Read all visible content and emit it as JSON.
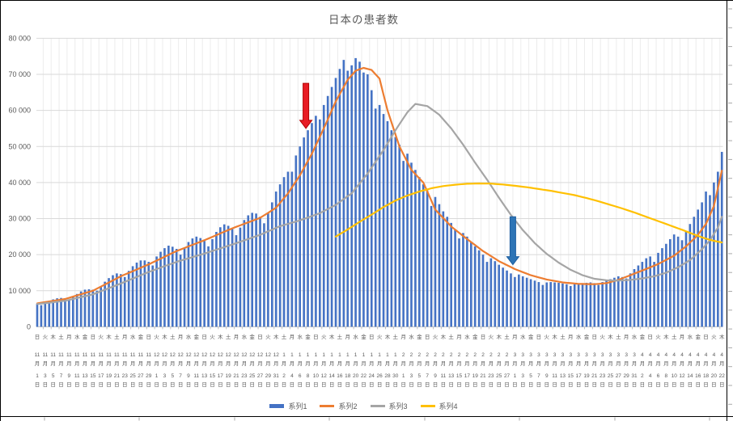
{
  "chart": {
    "title": "日本の患者数",
    "y_axis": {
      "min": 0,
      "max": 80000,
      "step": 10000,
      "tick_labels": [
        "0",
        "10 000",
        "20 000",
        "30 000",
        "40 000",
        "50 000",
        "60 000",
        "70 000",
        "80 000"
      ]
    },
    "legend": [
      {
        "label": "系列1",
        "color": "#4472C4",
        "marker": "bar"
      },
      {
        "label": "系列2",
        "color": "#ED7D31",
        "marker": "line"
      },
      {
        "label": "系列3",
        "color": "#A5A5A5",
        "marker": "line"
      },
      {
        "label": "系列4",
        "color": "#FFC000",
        "marker": "line"
      }
    ],
    "colors": {
      "bar": "#4472C4",
      "gridline": "#D9D9D9",
      "vertical_gridline": "#ECECEC",
      "axis_line": "#BFBFBF",
      "axis_text": "#595959",
      "frame": "#000000"
    },
    "annotations": [
      {
        "name": "red-arrow",
        "fill": "#e81c24",
        "stroke": "#b00000",
        "day_index": 67.5,
        "value_from": 67500,
        "value_to": 55000
      },
      {
        "name": "blue-arrow",
        "fill": "#2e75b6",
        "stroke": "#1f5fa0",
        "day_index": 119.5,
        "value_from": 30500,
        "value_to": 17200
      }
    ]
  },
  "chart_data": {
    "type": "bar",
    "x_start_date": "2020-11-01",
    "x_end_date": "2021-04-22",
    "x_label_every_days": 2,
    "x_labels": [
      [
        "日",
        11,
        1
      ],
      [
        "火",
        11,
        3
      ],
      [
        "木",
        11,
        5
      ],
      [
        "土",
        11,
        7
      ],
      [
        "月",
        11,
        9
      ],
      [
        "水",
        11,
        11
      ],
      [
        "金",
        11,
        13
      ],
      [
        "日",
        11,
        15
      ],
      [
        "火",
        11,
        17
      ],
      [
        "木",
        11,
        19
      ],
      [
        "土",
        11,
        21
      ],
      [
        "月",
        11,
        23
      ],
      [
        "水",
        11,
        25
      ],
      [
        "金",
        11,
        27
      ],
      [
        "日",
        11,
        29
      ],
      [
        "火",
        12,
        1
      ],
      [
        "木",
        12,
        3
      ],
      [
        "土",
        12,
        5
      ],
      [
        "月",
        12,
        7
      ],
      [
        "水",
        12,
        9
      ],
      [
        "金",
        12,
        11
      ],
      [
        "日",
        12,
        13
      ],
      [
        "火",
        12,
        15
      ],
      [
        "木",
        12,
        17
      ],
      [
        "土",
        12,
        19
      ],
      [
        "月",
        12,
        21
      ],
      [
        "水",
        12,
        23
      ],
      [
        "金",
        12,
        25
      ],
      [
        "日",
        12,
        27
      ],
      [
        "火",
        12,
        29
      ],
      [
        "木",
        12,
        31
      ],
      [
        "土",
        1,
        2
      ],
      [
        "月",
        1,
        4
      ],
      [
        "水",
        1,
        6
      ],
      [
        "金",
        1,
        8
      ],
      [
        "日",
        1,
        10
      ],
      [
        "火",
        1,
        12
      ],
      [
        "木",
        1,
        14
      ],
      [
        "土",
        1,
        16
      ],
      [
        "月",
        1,
        18
      ],
      [
        "水",
        1,
        20
      ],
      [
        "金",
        1,
        22
      ],
      [
        "日",
        1,
        24
      ],
      [
        "火",
        1,
        26
      ],
      [
        "木",
        1,
        28
      ],
      [
        "土",
        1,
        30
      ],
      [
        "月",
        2,
        1
      ],
      [
        "水",
        2,
        3
      ],
      [
        "金",
        2,
        5
      ],
      [
        "日",
        2,
        7
      ],
      [
        "火",
        2,
        9
      ],
      [
        "木",
        2,
        11
      ],
      [
        "土",
        2,
        13
      ],
      [
        "月",
        2,
        15
      ],
      [
        "水",
        2,
        17
      ],
      [
        "金",
        2,
        19
      ],
      [
        "日",
        2,
        21
      ],
      [
        "火",
        2,
        23
      ],
      [
        "木",
        2,
        25
      ],
      [
        "土",
        2,
        27
      ],
      [
        "月",
        3,
        1
      ],
      [
        "水",
        3,
        3
      ],
      [
        "金",
        3,
        5
      ],
      [
        "日",
        3,
        7
      ],
      [
        "火",
        3,
        9
      ],
      [
        "木",
        3,
        11
      ],
      [
        "土",
        3,
        13
      ],
      [
        "月",
        3,
        15
      ],
      [
        "水",
        3,
        17
      ],
      [
        "金",
        3,
        19
      ],
      [
        "日",
        3,
        21
      ],
      [
        "火",
        3,
        23
      ],
      [
        "木",
        3,
        25
      ],
      [
        "土",
        3,
        27
      ],
      [
        "月",
        3,
        29
      ],
      [
        "水",
        3,
        31
      ],
      [
        "金",
        4,
        2
      ],
      [
        "日",
        4,
        4
      ],
      [
        "火",
        4,
        6
      ],
      [
        "木",
        4,
        8
      ],
      [
        "土",
        4,
        10
      ],
      [
        "月",
        4,
        12
      ],
      [
        "水",
        4,
        14
      ],
      [
        "金",
        4,
        16
      ],
      [
        "日",
        4,
        18
      ],
      [
        "火",
        4,
        20
      ],
      [
        "木",
        4,
        22
      ]
    ],
    "series": [
      {
        "name": "系列1",
        "type": "bar",
        "color": "#4472C4",
        "values": [
          6400,
          6000,
          6600,
          7200,
          7600,
          7900,
          8000,
          7800,
          7400,
          8200,
          9100,
          9800,
          10300,
          10400,
          10300,
          10000,
          11200,
          12500,
          13500,
          14300,
          14800,
          14600,
          13800,
          15500,
          16800,
          17800,
          18400,
          18400,
          18000,
          17000,
          19500,
          20800,
          21800,
          22500,
          22200,
          21600,
          20000,
          21800,
          23500,
          24500,
          25000,
          24600,
          23800,
          22300,
          24300,
          26300,
          27600,
          28400,
          28000,
          27200,
          25400,
          27500,
          29600,
          30900,
          31600,
          31400,
          30500,
          28700,
          31500,
          34500,
          37500,
          39500,
          41500,
          43000,
          43000,
          47500,
          50000,
          52500,
          54500,
          56500,
          58500,
          57500,
          61500,
          64000,
          66500,
          69000,
          71500,
          74000,
          71000,
          72500,
          74500,
          73500,
          70500,
          70000,
          65600,
          60500,
          61500,
          59000,
          57000,
          54500,
          52600,
          50500,
          46000,
          48000,
          45500,
          43500,
          41500,
          39500,
          37800,
          33500,
          36000,
          34000,
          32000,
          30500,
          28800,
          27000,
          24500,
          26000,
          25000,
          23500,
          22300,
          21200,
          20000,
          18000,
          19000,
          18200,
          17200,
          16400,
          15600,
          14800,
          13800,
          14500,
          14000,
          13600,
          13200,
          12800,
          12400,
          11600,
          12300,
          12400,
          12300,
          12200,
          12000,
          11800,
          11300,
          11800,
          12000,
          12100,
          12200,
          12300,
          12100,
          11600,
          12400,
          12800,
          13200,
          13600,
          14000,
          13800,
          13400,
          14800,
          16000,
          17000,
          18000,
          19000,
          19500,
          18000,
          20500,
          21800,
          23000,
          24300,
          25600,
          25000,
          24000,
          26500,
          28500,
          30500,
          32500,
          34500,
          37500,
          36500,
          40000,
          43000,
          48500
        ]
      },
      {
        "name": "系列2",
        "type": "line",
        "color": "#ED7D31",
        "points": [
          [
            0,
            6500
          ],
          [
            7,
            7700
          ],
          [
            14,
            10000
          ],
          [
            21,
            14000
          ],
          [
            28,
            17300
          ],
          [
            35,
            21000
          ],
          [
            42,
            24000
          ],
          [
            49,
            27300
          ],
          [
            56,
            30200
          ],
          [
            60,
            33000
          ],
          [
            63,
            37000
          ],
          [
            66,
            42000
          ],
          [
            69,
            48000
          ],
          [
            72,
            55000
          ],
          [
            75,
            62500
          ],
          [
            78,
            68500
          ],
          [
            80,
            71000
          ],
          [
            82,
            71800
          ],
          [
            84,
            71200
          ],
          [
            86,
            68800
          ],
          [
            88,
            60000
          ],
          [
            91,
            50000
          ],
          [
            94,
            43500
          ],
          [
            97,
            40000
          ],
          [
            100,
            32500
          ],
          [
            104,
            27800
          ],
          [
            108,
            24300
          ],
          [
            112,
            21000
          ],
          [
            116,
            18200
          ],
          [
            120,
            16000
          ],
          [
            124,
            14300
          ],
          [
            128,
            13100
          ],
          [
            132,
            12300
          ],
          [
            136,
            11900
          ],
          [
            140,
            11800
          ],
          [
            143,
            12100
          ],
          [
            146,
            13000
          ],
          [
            149,
            14300
          ],
          [
            152,
            15600
          ],
          [
            156,
            17400
          ],
          [
            160,
            19700
          ],
          [
            163,
            22300
          ],
          [
            166,
            25500
          ],
          [
            168,
            28500
          ],
          [
            170,
            33500
          ],
          [
            172,
            43300
          ]
        ]
      },
      {
        "name": "系列3",
        "type": "line",
        "color": "#A5A5A5",
        "points": [
          [
            0,
            6300
          ],
          [
            7,
            7200
          ],
          [
            14,
            9000
          ],
          [
            21,
            12000
          ],
          [
            28,
            15200
          ],
          [
            35,
            18000
          ],
          [
            42,
            20300
          ],
          [
            49,
            22800
          ],
          [
            56,
            25500
          ],
          [
            61,
            27900
          ],
          [
            66,
            29500
          ],
          [
            71,
            31500
          ],
          [
            75,
            33800
          ],
          [
            79,
            37000
          ],
          [
            83,
            42500
          ],
          [
            87,
            49000
          ],
          [
            90,
            54500
          ],
          [
            93,
            59500
          ],
          [
            95,
            61800
          ],
          [
            98,
            61200
          ],
          [
            101,
            58800
          ],
          [
            104,
            55000
          ],
          [
            107,
            50500
          ],
          [
            110,
            45500
          ],
          [
            113,
            40800
          ],
          [
            116,
            35800
          ],
          [
            119,
            31000
          ],
          [
            122,
            26800
          ],
          [
            125,
            23200
          ],
          [
            128,
            20200
          ],
          [
            131,
            17800
          ],
          [
            134,
            15800
          ],
          [
            137,
            14300
          ],
          [
            140,
            13300
          ],
          [
            143,
            12900
          ],
          [
            146,
            12800
          ],
          [
            149,
            13000
          ],
          [
            152,
            13400
          ],
          [
            155,
            14000
          ],
          [
            158,
            15000
          ],
          [
            161,
            16500
          ],
          [
            164,
            18500
          ],
          [
            167,
            21500
          ],
          [
            169,
            24000
          ],
          [
            171,
            27500
          ],
          [
            172,
            30500
          ]
        ]
      },
      {
        "name": "系列4",
        "type": "line",
        "color": "#FFC000",
        "points": [
          [
            75,
            25000
          ],
          [
            78,
            27000
          ],
          [
            81,
            29100
          ],
          [
            84,
            31100
          ],
          [
            87,
            33200
          ],
          [
            90,
            35000
          ],
          [
            93,
            36400
          ],
          [
            96,
            37500
          ],
          [
            99,
            38400
          ],
          [
            102,
            39000
          ],
          [
            105,
            39400
          ],
          [
            108,
            39650
          ],
          [
            111,
            39750
          ],
          [
            114,
            39700
          ],
          [
            117,
            39450
          ],
          [
            120,
            39100
          ],
          [
            123,
            38700
          ],
          [
            126,
            38200
          ],
          [
            129,
            37700
          ],
          [
            132,
            37100
          ],
          [
            135,
            36500
          ],
          [
            138,
            35700
          ],
          [
            141,
            34800
          ],
          [
            144,
            33800
          ],
          [
            147,
            32800
          ],
          [
            150,
            31700
          ],
          [
            153,
            30500
          ],
          [
            156,
            29300
          ],
          [
            159,
            28100
          ],
          [
            162,
            26900
          ],
          [
            165,
            25600
          ],
          [
            167,
            24800
          ],
          [
            169,
            24100
          ],
          [
            171,
            23600
          ],
          [
            172,
            23400
          ]
        ]
      }
    ]
  }
}
